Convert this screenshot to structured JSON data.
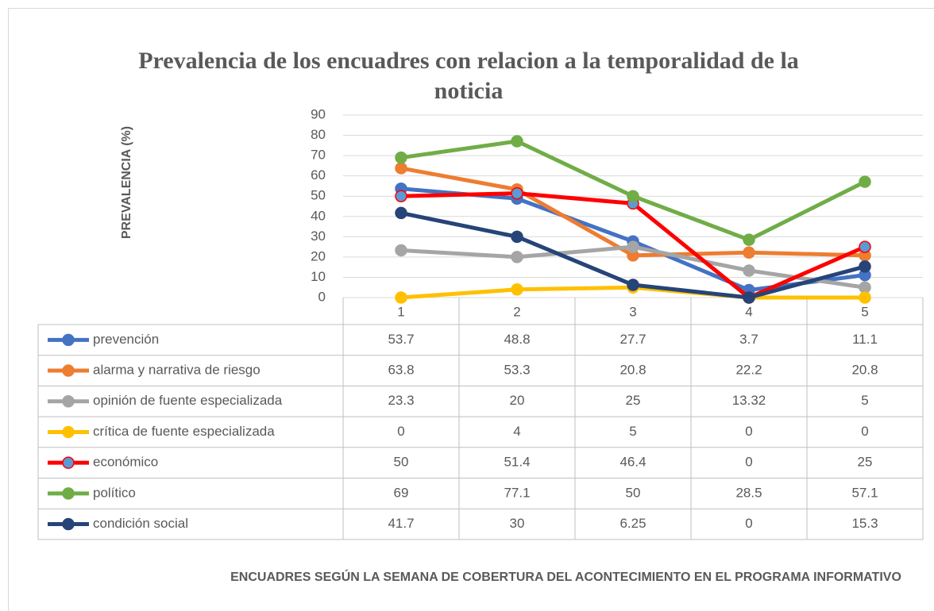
{
  "chart_data": {
    "type": "line",
    "title": "Prevalencia de los encuadres con relacion a la temporalidad de la noticia",
    "y_label": "PREVALENCIA (%)",
    "x_label": "ENCUADRES SEGÚN LA SEMANA DE COBERTURA DEL ACONTECIMIENTO EN EL PROGRAMA INFORMATIVO",
    "categories": [
      "1",
      "2",
      "3",
      "4",
      "5"
    ],
    "ylim": [
      0,
      90
    ],
    "yticks": [
      0,
      10,
      20,
      30,
      40,
      50,
      60,
      70,
      80,
      90
    ],
    "grid": true,
    "series": [
      {
        "name": "prevención",
        "color": "#4472c4",
        "values": [
          53.7,
          48.8,
          27.7,
          3.7,
          11.1
        ]
      },
      {
        "name": "alarma y narrativa de riesgo",
        "color": "#ed7d31",
        "values": [
          63.8,
          53.3,
          20.8,
          22.2,
          20.8
        ]
      },
      {
        "name": "opinión de fuente especializada",
        "color": "#a5a5a5",
        "values": [
          23.3,
          20,
          25,
          13.32,
          5
        ]
      },
      {
        "name": "crítica de fuente especializada",
        "color": "#ffc000",
        "values": [
          0,
          4,
          5,
          0,
          0
        ]
      },
      {
        "name": "económico",
        "color": "#ff0000",
        "marker_color": "#5b9bd5",
        "values": [
          50,
          51.4,
          46.4,
          0,
          25
        ]
      },
      {
        "name": "político",
        "color": "#70ad47",
        "values": [
          69,
          77.1,
          50,
          28.5,
          57.1
        ]
      },
      {
        "name": "condición social",
        "color": "#264478",
        "values": [
          41.7,
          30,
          6.25,
          0,
          15.3
        ]
      }
    ]
  }
}
